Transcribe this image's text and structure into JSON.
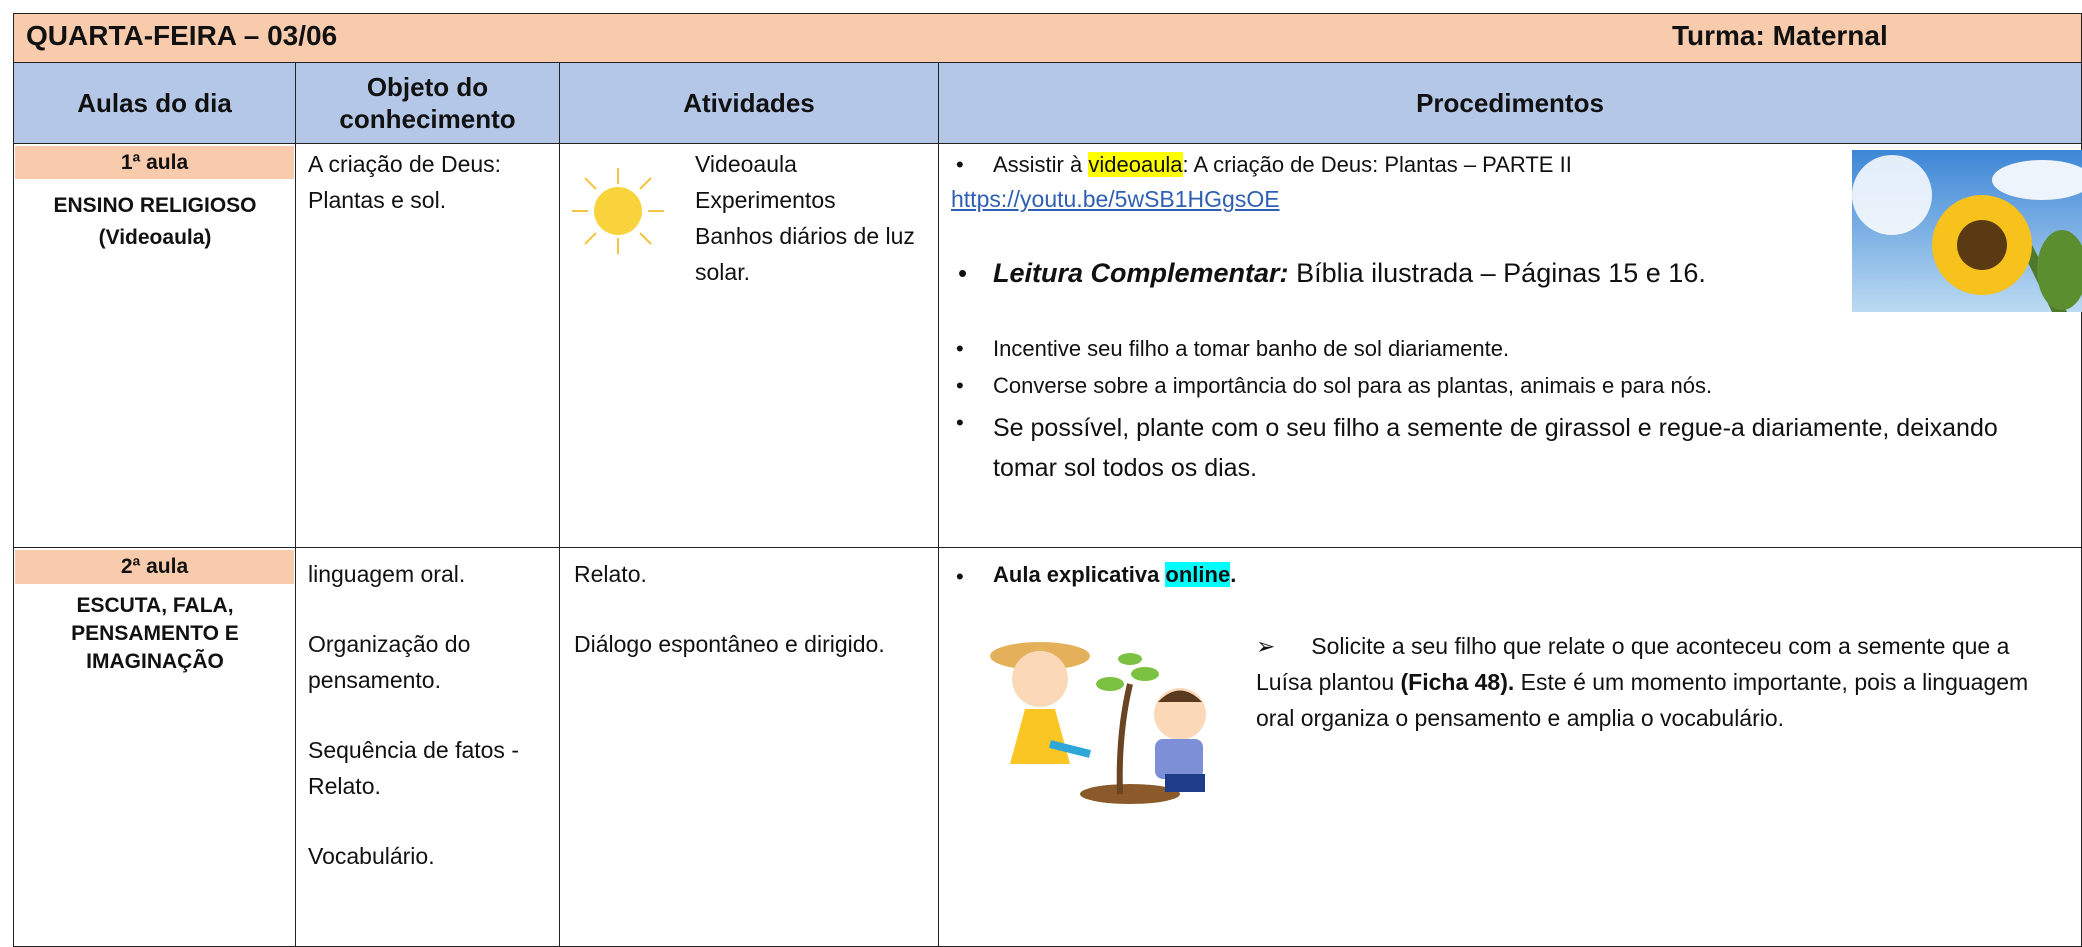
{
  "header": {
    "title": "QUARTA-FEIRA – 03/06",
    "class": "Turma: Maternal"
  },
  "table": {
    "columns": [
      "Aulas do dia",
      "Objeto do conhecimento",
      "Atividades",
      "Procedimentos"
    ],
    "rows": [
      {
        "lesson": "1ª aula",
        "subject": "ENSINO RELIGIOSO (Videoaula)",
        "objects": [
          "A criação de Deus: Plantas e sol."
        ],
        "activities": [
          "Videoaula",
          "Experimentos",
          "Banhos diários de luz solar."
        ],
        "procedures": {
          "watch": [
            "Assistir à ",
            "videoaula",
            ":  A criação de Deus: Plantas – PARTE II"
          ],
          "link": "https://youtu.be/5wSB1HGgsOE",
          "reading": [
            "Leitura Complementar:",
            " Bíblia ilustrada – Páginas 15 e 16."
          ],
          "items": [
            "Incentive seu filho a tomar banho de sol diariamente.",
            "Converse sobre a importância do sol para as plantas, animais e para nós.",
            "Se possível, plante com o seu filho a semente de girassol e regue-a diariamente, deixando tomar sol todos os dias."
          ]
        }
      },
      {
        "lesson": "2ª aula",
        "subject": "ESCUTA, FALA, PENSAMENTO E IMAGINAÇÃO",
        "objects": [
          "linguagem oral.",
          "Organização do pensamento.",
          "Sequência de fatos - Relato.",
          "Vocabulário."
        ],
        "activities": [
          "Relato.",
          "Diálogo espontâneo e dirigido."
        ],
        "procedures": {
          "class": [
            "Aula explicativa ",
            "online",
            "."
          ],
          "task": [
            "Solicite a seu filho que relate o que aconteceu com a semente que a Luísa plantou ",
            "(Ficha 48).",
            " Este é um momento importante, pois a linguagem oral organiza o pensamento e amplia o vocabulário."
          ]
        }
      }
    ]
  }
}
